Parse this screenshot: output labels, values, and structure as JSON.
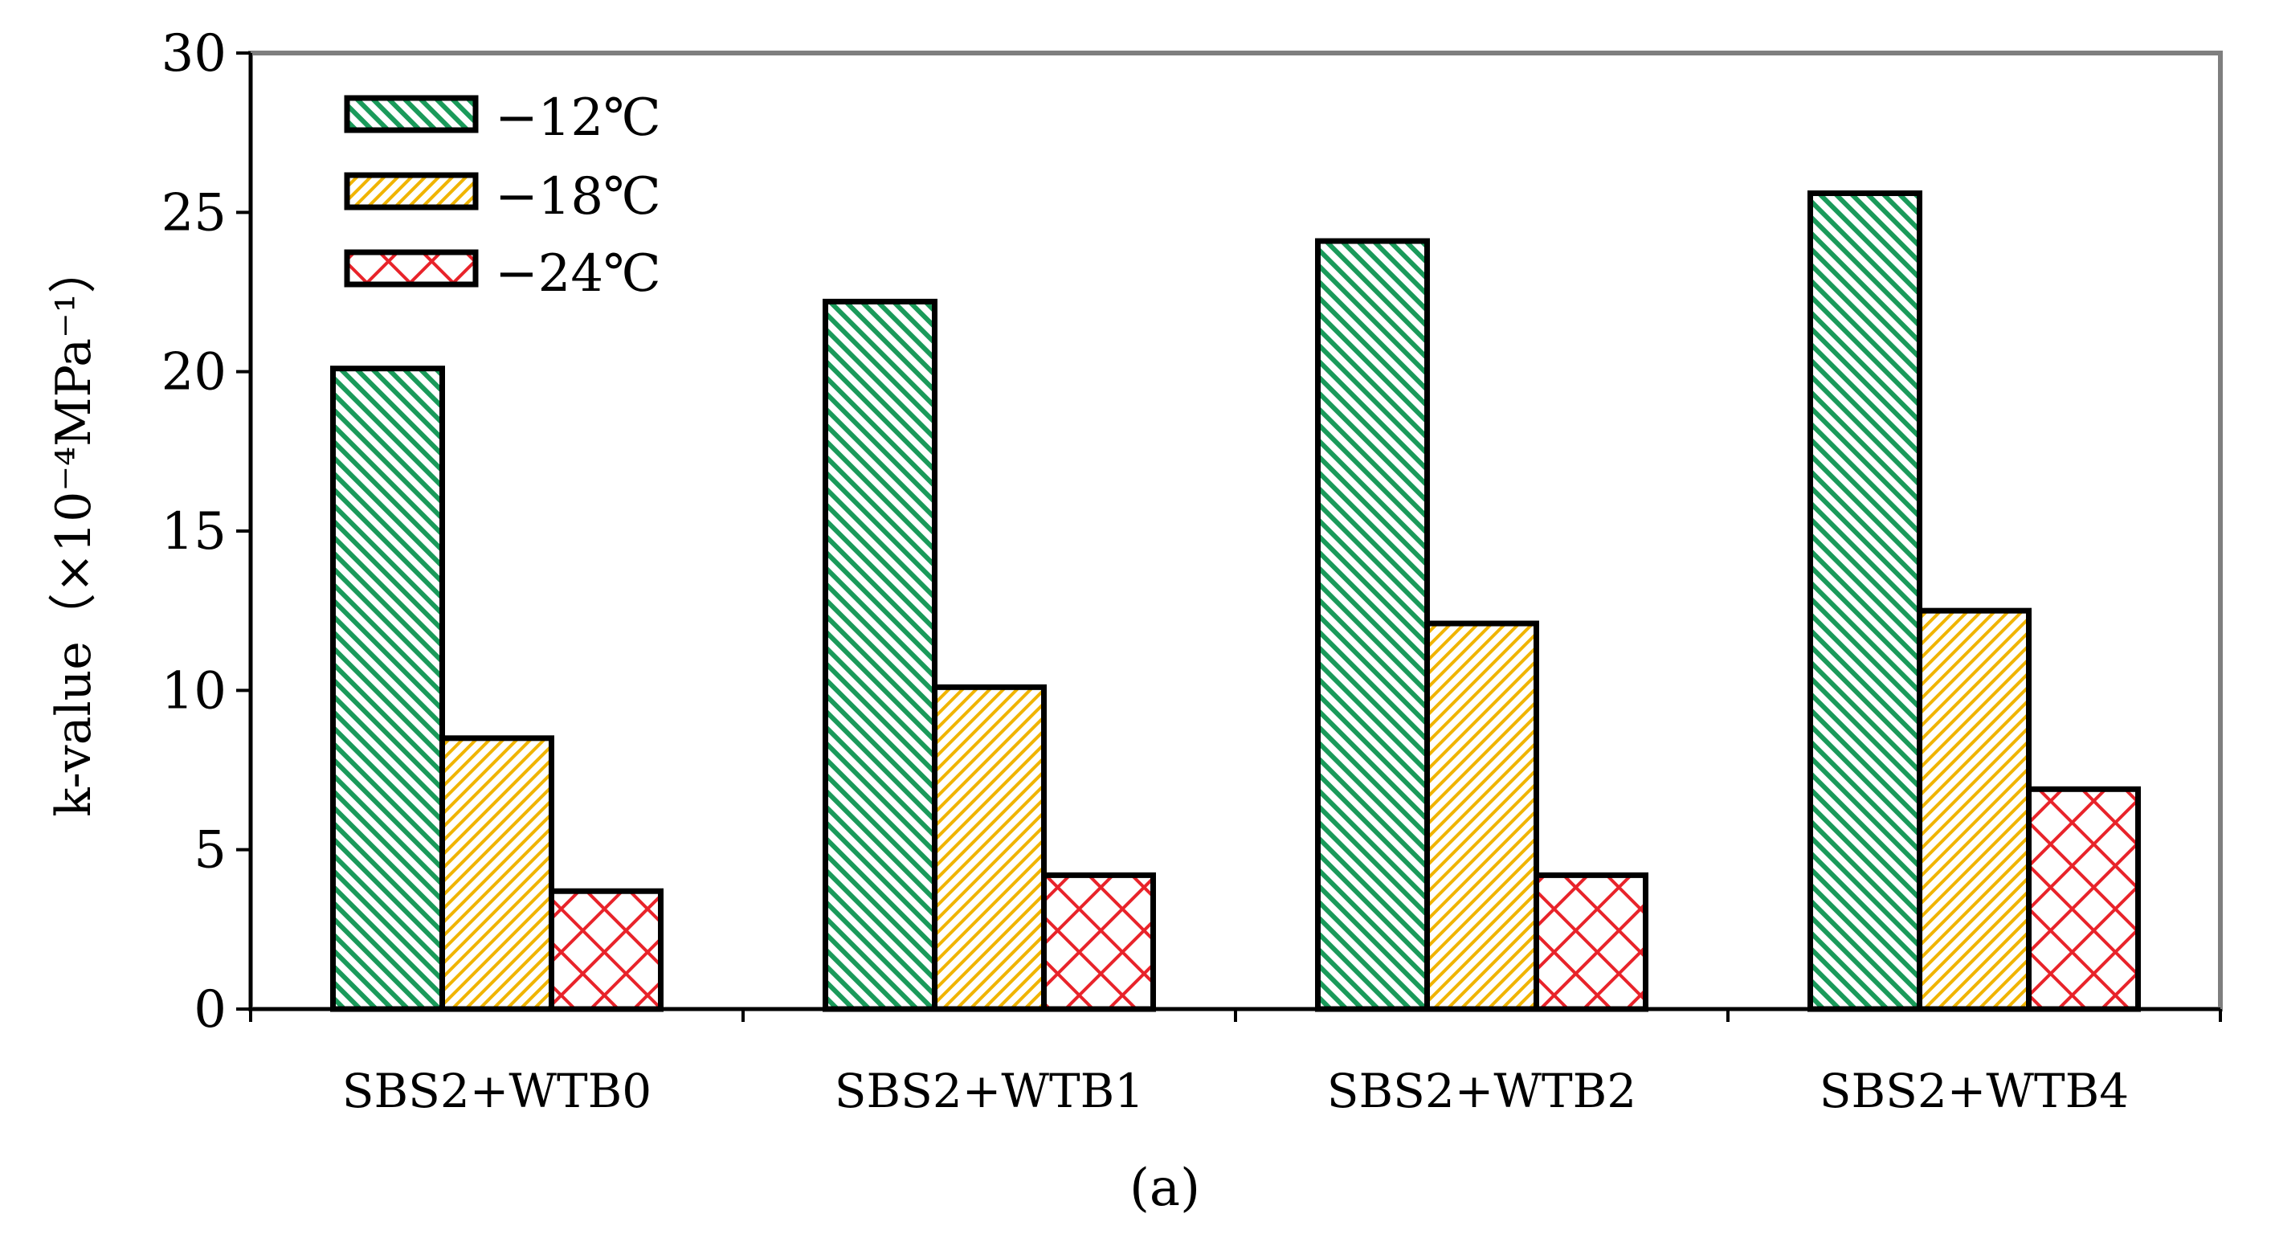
{
  "chart_data": {
    "type": "bar",
    "title": "",
    "xlabel": "",
    "ylabel": "k-value（×10⁻⁴MPa⁻¹）",
    "ylim": [
      0,
      30
    ],
    "yticks": [
      "0",
      "5",
      "10",
      "15",
      "20",
      "25",
      "30"
    ],
    "categories": [
      "SBS2+WTB0",
      "SBS2+WTB1",
      "SBS2+WTB2",
      "SBS2+WTB4"
    ],
    "series": [
      {
        "name": "−12℃",
        "values": [
          20.1,
          22.2,
          24.1,
          25.6
        ],
        "color": "#1a9a5a",
        "pattern": "diagonal"
      },
      {
        "name": "−18℃",
        "values": [
          8.5,
          10.1,
          12.1,
          12.5
        ],
        "color": "#f0b400",
        "pattern": "diagonal-fine"
      },
      {
        "name": "−24℃",
        "values": [
          3.7,
          4.2,
          4.2,
          6.9
        ],
        "color": "#e8232a",
        "pattern": "crosshatch"
      }
    ],
    "legend_position": "top-left",
    "panel_label": "(a)"
  }
}
